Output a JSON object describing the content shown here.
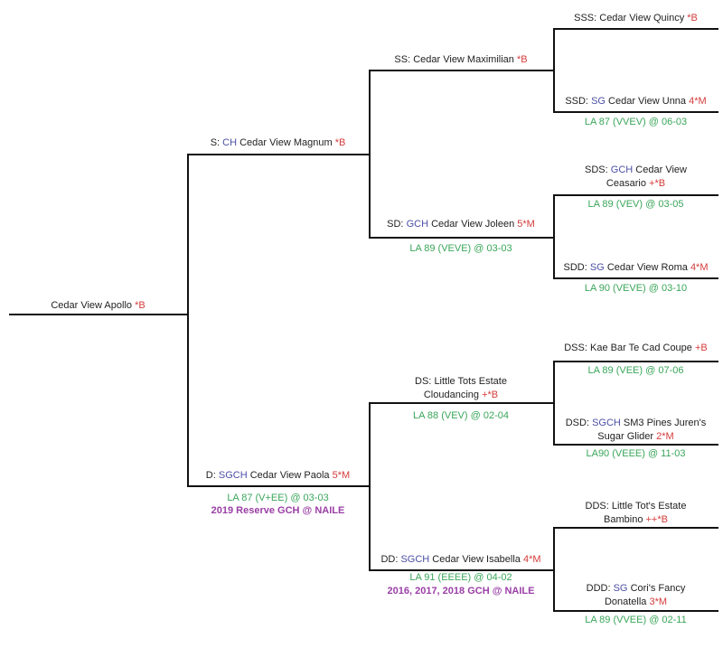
{
  "colors": {
    "title": "#4b4fa6",
    "rating": "#d53b3b",
    "linear_appraisal": "#3aa65a",
    "award": "#9a3fa6",
    "line": "#111111"
  },
  "nodes": [
    {
      "id": "root",
      "prefix": "",
      "title": "",
      "name": "Cedar View Apollo",
      "rating": "*B"
    },
    {
      "id": "S",
      "prefix": "S:",
      "title": "CH",
      "name": "Cedar View Magnum",
      "rating": "*B"
    },
    {
      "id": "D",
      "prefix": "D:",
      "title": "SGCH",
      "name": "Cedar View Paola",
      "rating": "5*M",
      "la": "LA 87 (V+EE) @ 03-03",
      "award": "2019 Reserve GCH @ NAILE"
    },
    {
      "id": "SS",
      "prefix": "SS:",
      "title": "",
      "name": "Cedar View Maximilian",
      "rating": "*B"
    },
    {
      "id": "SD",
      "prefix": "SD:",
      "title": "GCH",
      "name": "Cedar View Joleen",
      "rating": "5*M",
      "la": "LA 89 (VEVE) @ 03-03"
    },
    {
      "id": "DS",
      "prefix": "DS:",
      "title": "",
      "name": "Little Tots Estate Cloudancing",
      "rating": "+*B",
      "la": "LA 88 (VEV) @ 02-04"
    },
    {
      "id": "DD",
      "prefix": "DD:",
      "title": "SGCH",
      "name": "Cedar View Isabella",
      "rating": "4*M",
      "la": "LA 91 (EEEE) @ 04-02",
      "award": "2016, 2017, 2018 GCH @ NAILE"
    },
    {
      "id": "SSS",
      "prefix": "SSS:",
      "title": "",
      "name": "Cedar View Quincy",
      "rating": "*B"
    },
    {
      "id": "SSD",
      "prefix": "SSD:",
      "title": "SG",
      "name": "Cedar View Unna",
      "rating": "4*M",
      "la": "LA 87 (VVEV) @ 06-03"
    },
    {
      "id": "SDS",
      "prefix": "SDS:",
      "title": "GCH",
      "name": "Cedar View Ceasario",
      "rating": "+*B",
      "la": "LA 89 (VEV) @ 03-05"
    },
    {
      "id": "SDD",
      "prefix": "SDD:",
      "title": "SG",
      "name": "Cedar View Roma",
      "rating": "4*M",
      "la": "LA 90 (VEVE) @ 03-10"
    },
    {
      "id": "DSS",
      "prefix": "DSS:",
      "title": "",
      "name": "Kae Bar Te Cad Coupe",
      "rating": "+B",
      "la": "LA 89 (VEE) @ 07-06"
    },
    {
      "id": "DSD",
      "prefix": "DSD:",
      "title": "SGCH",
      "name": "SM3 Pines Juren's Sugar Glider",
      "rating": "2*M",
      "la": "LA90 (VEEE) @ 11-03"
    },
    {
      "id": "DDS",
      "prefix": "DDS:",
      "title": "",
      "name": "Little Tot's Estate Bambino",
      "rating": "++*B"
    },
    {
      "id": "DDD",
      "prefix": "DDD:",
      "title": "SG",
      "name": "Cori's Fancy Donatella",
      "rating": "3*M",
      "la": "LA 89 (VVEE) @ 02-11"
    }
  ]
}
